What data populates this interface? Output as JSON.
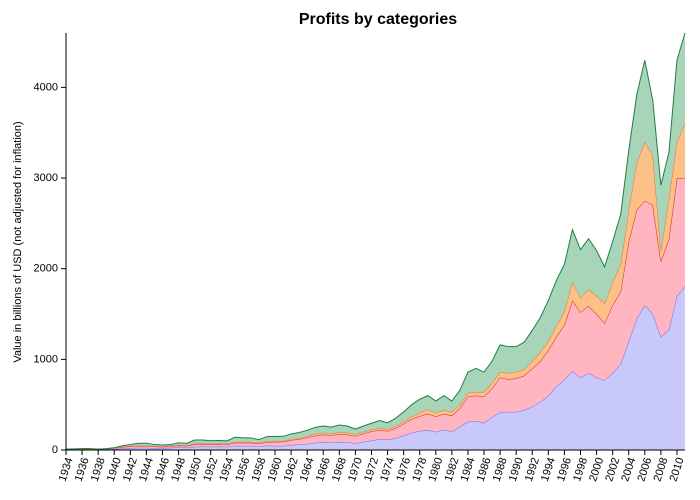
{
  "chart_data": {
    "type": "stacked_area",
    "title": "Profits by categories",
    "ylabel": "Value in billions of USD (not adjusted for inflation)",
    "x": [
      1934,
      1935,
      1936,
      1937,
      1938,
      1939,
      1940,
      1941,
      1942,
      1943,
      1944,
      1945,
      1946,
      1947,
      1948,
      1949,
      1950,
      1951,
      1952,
      1953,
      1954,
      1955,
      1956,
      1957,
      1958,
      1959,
      1960,
      1961,
      1962,
      1963,
      1964,
      1965,
      1966,
      1967,
      1968,
      1969,
      1970,
      1971,
      1972,
      1973,
      1974,
      1975,
      1976,
      1977,
      1978,
      1979,
      1980,
      1981,
      1982,
      1983,
      1984,
      1985,
      1986,
      1987,
      1988,
      1989,
      1990,
      1991,
      1992,
      1993,
      1994,
      1995,
      1996,
      1997,
      1998,
      1999,
      2000,
      2001,
      2002,
      2003,
      2004,
      2005,
      2006,
      2007,
      2008,
      2009,
      2010,
      2011
    ],
    "series": [
      {
        "color": "#c8c8fa",
        "line_color": "#7b68ee",
        "values": [
          5,
          6,
          8,
          8,
          5,
          8,
          10,
          17,
          22,
          25,
          25,
          20,
          20,
          25,
          30,
          28,
          35,
          38,
          36,
          38,
          36,
          45,
          45,
          45,
          40,
          48,
          45,
          46,
          55,
          60,
          68,
          80,
          85,
          82,
          88,
          85,
          75,
          90,
          105,
          120,
          115,
          130,
          160,
          190,
          210,
          220,
          200,
          225,
          200,
          260,
          310,
          320,
          300,
          360,
          420,
          420,
          420,
          440,
          480,
          530,
          600,
          700,
          780,
          870,
          800,
          850,
          800,
          770,
          850,
          950,
          1200,
          1450,
          1600,
          1500,
          1250,
          1330,
          1700,
          1800
        ]
      },
      {
        "color": "#ffb6c1",
        "line_color": "#d62728",
        "values": [
          3,
          3,
          4,
          4,
          3,
          4,
          10,
          15,
          18,
          20,
          20,
          18,
          15,
          18,
          20,
          18,
          25,
          27,
          25,
          27,
          25,
          35,
          35,
          35,
          30,
          40,
          45,
          45,
          55,
          60,
          70,
          80,
          85,
          82,
          88,
          85,
          80,
          90,
          100,
          100,
          95,
          110,
          130,
          150,
          165,
          180,
          170,
          175,
          180,
          200,
          280,
          280,
          290,
          320,
          380,
          360,
          370,
          380,
          420,
          450,
          500,
          550,
          600,
          780,
          720,
          740,
          700,
          630,
          750,
          800,
          1100,
          1200,
          1150,
          1200,
          830,
          1000,
          1300,
          1200
        ]
      },
      {
        "color": "#fdc086",
        "line_color": "#e8743b",
        "values": [
          1,
          1,
          1,
          1,
          1,
          1,
          2,
          3,
          4,
          5,
          5,
          4,
          5,
          5,
          5,
          5,
          10,
          10,
          9,
          9,
          9,
          10,
          10,
          10,
          10,
          10,
          10,
          10,
          12,
          13,
          14,
          20,
          20,
          18,
          20,
          20,
          20,
          20,
          20,
          20,
          20,
          20,
          25,
          30,
          35,
          50,
          40,
          40,
          40,
          40,
          40,
          40,
          50,
          60,
          60,
          70,
          70,
          70,
          80,
          100,
          100,
          120,
          150,
          200,
          160,
          180,
          200,
          220,
          250,
          300,
          350,
          520,
          650,
          550,
          120,
          450,
          400,
          600
        ]
      },
      {
        "color": "#a8d5b8",
        "line_color": "#1b7e4b",
        "values": [
          1,
          2,
          2,
          2,
          1,
          2,
          3,
          10,
          16,
          25,
          25,
          18,
          15,
          12,
          25,
          22,
          40,
          35,
          32,
          31,
          30,
          50,
          45,
          43,
          35,
          50,
          50,
          50,
          55,
          60,
          65,
          70,
          75,
          70,
          80,
          75,
          55,
          65,
          70,
          85,
          70,
          90,
          105,
          130,
          150,
          150,
          130,
          160,
          120,
          160,
          230,
          260,
          220,
          240,
          300,
          290,
          280,
          300,
          340,
          380,
          450,
          500,
          520,
          580,
          530,
          560,
          500,
          400,
          450,
          550,
          650,
          750,
          900,
          600,
          720,
          500,
          900,
          1000
        ]
      }
    ],
    "xlim": [
      1934,
      2011
    ],
    "xticks": [
      1934,
      1936,
      1938,
      1940,
      1942,
      1944,
      1946,
      1948,
      1950,
      1952,
      1954,
      1956,
      1958,
      1960,
      1962,
      1964,
      1966,
      1968,
      1970,
      1972,
      1974,
      1976,
      1978,
      1980,
      1982,
      1984,
      1986,
      1988,
      1990,
      1992,
      1994,
      1996,
      1998,
      2000,
      2002,
      2004,
      2006,
      2008,
      2010
    ],
    "ylim": [
      0,
      4600
    ],
    "yticks": [
      0,
      1000,
      2000,
      3000,
      4000
    ]
  }
}
